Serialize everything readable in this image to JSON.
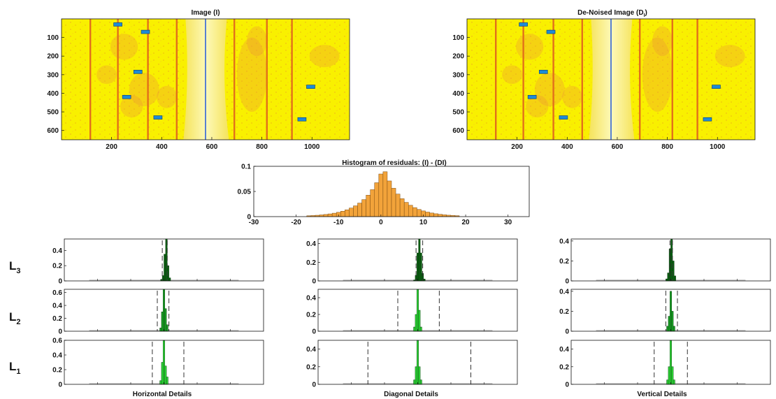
{
  "colors": {
    "image_bg": "#f9f000",
    "image_stripe": "#e2701b",
    "image_pale": "#fbf59a",
    "image_blue_line": "#2f63d8",
    "marker": "#1e8bd6",
    "hist_fill": "#f2a33a",
    "detail_fill_dark": "#0b5f12",
    "detail_fill_light": "#2fdc38",
    "axis": "#111111"
  },
  "icons": {
    "marker": "blue-rectangle-marker"
  },
  "chart_data": [
    {
      "id": "image",
      "type": "heatmap",
      "title": "Image (I)",
      "xlim": [
        0,
        1150
      ],
      "ylim": [
        650,
        0
      ],
      "xticks": [
        200,
        400,
        600,
        800,
        1000
      ],
      "yticks": [
        100,
        200,
        300,
        400,
        500,
        600
      ],
      "stripes_x": [
        115,
        225,
        345,
        460,
        690,
        820,
        920
      ],
      "bright_band_x": [
        560,
        600
      ],
      "markers": [
        {
          "x": 225,
          "y": 30
        },
        {
          "x": 335,
          "y": 70
        },
        {
          "x": 305,
          "y": 285
        },
        {
          "x": 260,
          "y": 420
        },
        {
          "x": 385,
          "y": 530
        },
        {
          "x": 995,
          "y": 365
        },
        {
          "x": 960,
          "y": 540
        }
      ]
    },
    {
      "id": "denoised",
      "type": "heatmap",
      "title": "De-Noised Image (D",
      "title_sub": "I",
      "title_end": ")",
      "xlim": [
        0,
        1150
      ],
      "ylim": [
        650,
        0
      ],
      "xticks": [
        200,
        400,
        600,
        800,
        1000
      ],
      "yticks": [
        100,
        200,
        300,
        400,
        500,
        600
      ],
      "stripes_x": [
        115,
        225,
        345,
        460,
        690,
        820,
        920
      ],
      "bright_band_x": [
        560,
        600
      ],
      "markers": [
        {
          "x": 225,
          "y": 30
        },
        {
          "x": 335,
          "y": 70
        },
        {
          "x": 305,
          "y": 285
        },
        {
          "x": 260,
          "y": 420
        },
        {
          "x": 385,
          "y": 530
        },
        {
          "x": 995,
          "y": 365
        },
        {
          "x": 960,
          "y": 540
        }
      ]
    },
    {
      "id": "residual_hist",
      "type": "bar",
      "title": "Histogram of residuals: (I) - (DI)",
      "xlim": [
        -30,
        35
      ],
      "ylim": [
        0,
        0.1
      ],
      "xticks": [
        -30,
        -20,
        -10,
        0,
        10,
        20,
        30
      ],
      "yticks": [
        0,
        0.05,
        0.1
      ],
      "ytick_labels": [
        "0",
        "0.05",
        "0.1"
      ],
      "bin_width": 1,
      "center": 0,
      "peak": 0.1,
      "spread": 4.8
    },
    {
      "id": "h3",
      "type": "bar",
      "row_label": "L",
      "row_sub": "3",
      "column": "horizontal",
      "xlim": [
        -60,
        60
      ],
      "ylim": [
        0,
        0.55
      ],
      "yticks": [
        0,
        0.2,
        0.4
      ],
      "ytick_labels": [
        "0",
        "0.2",
        "0.4"
      ],
      "center": 1,
      "spike_heights": [
        0.02,
        0.07,
        0.35,
        0.55,
        0.2,
        0.04
      ],
      "dashed": [
        -1,
        2
      ],
      "shade": "dark"
    },
    {
      "id": "d3",
      "type": "bar",
      "row_label": "L",
      "row_sub": "3",
      "column": "diagonal",
      "xlim": [
        -60,
        60
      ],
      "ylim": [
        0,
        0.45
      ],
      "yticks": [
        0,
        0.2,
        0.4
      ],
      "ytick_labels": [
        "0",
        "0.2",
        "0.4"
      ],
      "center": 1,
      "spike_heights": [
        0.01,
        0.06,
        0.3,
        0.45,
        0.3,
        0.08,
        0.02
      ],
      "dashed": [
        -1,
        3
      ],
      "shade": "dark"
    },
    {
      "id": "v3",
      "type": "bar",
      "row_label": "L",
      "row_sub": "3",
      "column": "vertical",
      "xlim": [
        -60,
        60
      ],
      "ylim": [
        0,
        0.42
      ],
      "yticks": [
        0,
        0.2,
        0.4
      ],
      "ytick_labels": [
        "0",
        "0.2",
        "0.4"
      ],
      "center": 0,
      "spike_heights": [
        0.02,
        0.08,
        0.32,
        0.42,
        0.2,
        0.05
      ],
      "dashed": [
        -0.5,
        1
      ],
      "shade": "dark"
    },
    {
      "id": "h2",
      "type": "bar",
      "row_label": "L",
      "row_sub": "2",
      "column": "horizontal",
      "xlim": [
        -60,
        60
      ],
      "ylim": [
        0,
        0.65
      ],
      "yticks": [
        0,
        0.2,
        0.4,
        0.6
      ],
      "ytick_labels": [
        "0",
        "0.2",
        "0.4",
        "0.6"
      ],
      "center": 0,
      "spike_heights": [
        0.05,
        0.3,
        0.65,
        0.35,
        0.1
      ],
      "dashed": [
        -4,
        3
      ],
      "shade": "mid"
    },
    {
      "id": "d2",
      "type": "bar",
      "row_label": "L",
      "row_sub": "2",
      "column": "diagonal",
      "xlim": [
        -60,
        60
      ],
      "ylim": [
        0,
        0.5
      ],
      "yticks": [
        0,
        0.2,
        0.4
      ],
      "ytick_labels": [
        "0",
        "0.2",
        "0.4"
      ],
      "center": 0,
      "spike_heights": [
        0.05,
        0.2,
        0.5,
        0.25,
        0.05
      ],
      "dashed": [
        -12,
        13
      ],
      "shade": "light"
    },
    {
      "id": "v2",
      "type": "bar",
      "row_label": "L",
      "row_sub": "2",
      "column": "vertical",
      "xlim": [
        -60,
        60
      ],
      "ylim": [
        0,
        0.42
      ],
      "yticks": [
        0,
        0.2,
        0.4
      ],
      "ytick_labels": [
        "0",
        "0.2",
        "0.4"
      ],
      "center": 0,
      "spike_heights": [
        0.05,
        0.15,
        0.4,
        0.2,
        0.05
      ],
      "dashed": [
        -3,
        4
      ],
      "shade": "mid"
    },
    {
      "id": "h1",
      "type": "bar",
      "row_label": "L",
      "row_sub": "1",
      "column": "horizontal",
      "xlim": [
        -60,
        60
      ],
      "ylim": [
        0,
        0.6
      ],
      "yticks": [
        0,
        0.2,
        0.4,
        0.6
      ],
      "ytick_labels": [
        "0",
        "0.2",
        "0.4",
        "0.6"
      ],
      "center": 0,
      "spike_heights": [
        0.05,
        0.3,
        0.6,
        0.25,
        0.1
      ],
      "dashed": [
        -7,
        12
      ],
      "shade": "light"
    },
    {
      "id": "d1",
      "type": "bar",
      "row_label": "L",
      "row_sub": "1",
      "column": "diagonal",
      "xlim": [
        -60,
        60
      ],
      "ylim": [
        0,
        0.5
      ],
      "yticks": [
        0,
        0.2,
        0.4
      ],
      "ytick_labels": [
        "0",
        "0.2",
        "0.4"
      ],
      "center": 0,
      "spike_heights": [
        0.05,
        0.2,
        0.5,
        0.2,
        0.05
      ],
      "dashed": [
        -30,
        32
      ],
      "shade": "light"
    },
    {
      "id": "v1",
      "type": "bar",
      "row_label": "L",
      "row_sub": "1",
      "column": "vertical",
      "xlim": [
        -60,
        60
      ],
      "ylim": [
        0,
        0.5
      ],
      "yticks": [
        0,
        0.2,
        0.4
      ],
      "ytick_labels": [
        "0",
        "0.2",
        "0.4"
      ],
      "center": 0,
      "spike_heights": [
        0.05,
        0.2,
        0.5,
        0.2,
        0.05
      ],
      "dashed": [
        -10,
        10
      ],
      "shade": "light"
    }
  ],
  "labels": {
    "row_L3": "L",
    "row_L3_sub": "3",
    "row_L2": "L",
    "row_L2_sub": "2",
    "row_L1": "L",
    "row_L1_sub": "1",
    "col_horizontal": "Horizontal Details",
    "col_diagonal": "Diagonal Details",
    "col_vertical": "Vertical Details"
  }
}
